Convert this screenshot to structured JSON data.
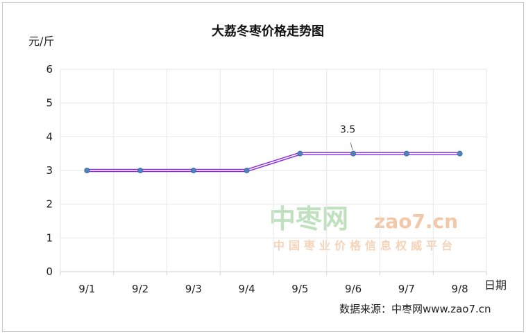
{
  "chart_data": {
    "type": "line",
    "title": "大荔冬枣价格走势图",
    "ylabel": "元/斤",
    "xlabel": "日期",
    "categories": [
      "9/1",
      "9/2",
      "9/3",
      "9/4",
      "9/5",
      "9/6",
      "9/7",
      "9/8"
    ],
    "series": [
      {
        "values": [
          3,
          3,
          3,
          3,
          3.5,
          3.5,
          3.5,
          3.5
        ]
      }
    ],
    "ylim": [
      0,
      6
    ],
    "yticks": [
      0,
      1,
      2,
      3,
      4,
      5,
      6
    ],
    "grid": true,
    "annotations": [
      {
        "category": "9/6",
        "value": 3.5,
        "text": "3.5"
      }
    ],
    "source": "数据来源：中枣网www.zao7.cn",
    "watermark": {
      "brand": "中枣网",
      "url": "zao7.cn",
      "tagline": "中国枣业价格信息权威平台"
    },
    "colors": {
      "line_outer": "#8a2be2",
      "line_inner": "#ffffff",
      "marker": "#4f81bd",
      "grid": "#e6e6e6",
      "axis": "#d0d0d0"
    }
  }
}
